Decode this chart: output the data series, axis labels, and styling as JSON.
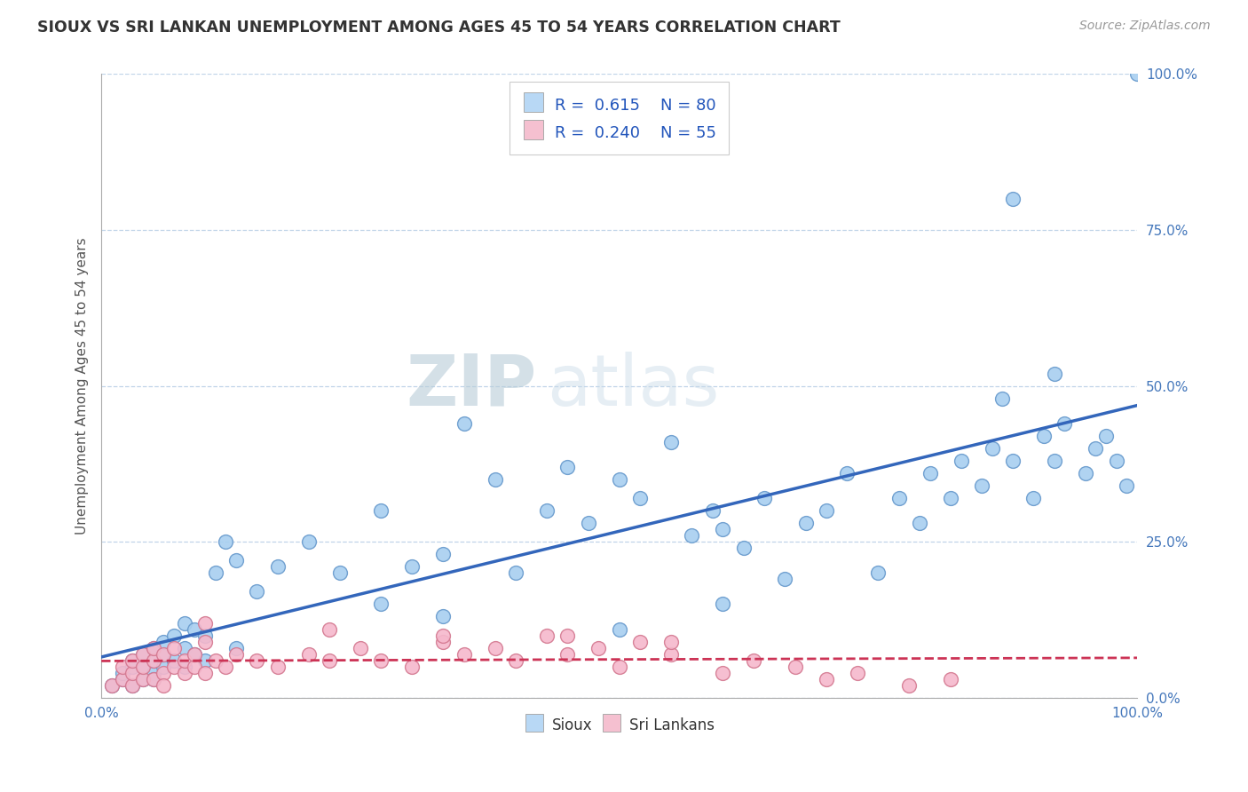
{
  "title": "SIOUX VS SRI LANKAN UNEMPLOYMENT AMONG AGES 45 TO 54 YEARS CORRELATION CHART",
  "source_text": "Source: ZipAtlas.com",
  "ylabel": "Unemployment Among Ages 45 to 54 years",
  "xlim": [
    0,
    1
  ],
  "ylim": [
    0,
    1
  ],
  "ytick_positions": [
    0,
    0.25,
    0.5,
    0.75,
    1.0
  ],
  "ytick_labels": [
    "0.0%",
    "25.0%",
    "50.0%",
    "75.0%",
    "100.0%"
  ],
  "xtick_positions": [
    0,
    1
  ],
  "xtick_labels": [
    "0.0%",
    "100.0%"
  ],
  "sioux_color": "#a8cff0",
  "sioux_edge_color": "#6699cc",
  "sri_color": "#f5b8cc",
  "sri_edge_color": "#d47890",
  "trend_sioux_color": "#3366bb",
  "trend_sri_color": "#cc3355",
  "legend_box_sioux": "#b8d8f5",
  "legend_box_sri": "#f5c0d0",
  "R_sioux": "0.615",
  "N_sioux": 80,
  "R_sri": "0.240",
  "N_sri": 55,
  "background_color": "#ffffff",
  "grid_color": "#c0d4e8",
  "watermark_zip": "ZIP",
  "watermark_atlas": "atlas",
  "sioux_x": [
    0.01,
    0.02,
    0.02,
    0.03,
    0.03,
    0.03,
    0.04,
    0.04,
    0.04,
    0.05,
    0.05,
    0.05,
    0.05,
    0.06,
    0.06,
    0.06,
    0.07,
    0.07,
    0.08,
    0.08,
    0.08,
    0.09,
    0.09,
    0.1,
    0.1,
    0.11,
    0.12,
    0.13,
    0.13,
    0.15,
    0.17,
    0.2,
    0.23,
    0.27,
    0.3,
    0.33,
    0.35,
    0.38,
    0.4,
    0.43,
    0.45,
    0.47,
    0.5,
    0.52,
    0.55,
    0.57,
    0.59,
    0.6,
    0.62,
    0.64,
    0.66,
    0.68,
    0.7,
    0.72,
    0.75,
    0.77,
    0.79,
    0.8,
    0.82,
    0.83,
    0.85,
    0.86,
    0.87,
    0.88,
    0.9,
    0.91,
    0.92,
    0.93,
    0.95,
    0.96,
    0.97,
    0.98,
    0.99,
    1.0,
    0.27,
    0.33,
    0.5,
    0.6,
    0.88,
    0.92
  ],
  "sioux_y": [
    0.02,
    0.03,
    0.04,
    0.02,
    0.05,
    0.06,
    0.03,
    0.07,
    0.05,
    0.04,
    0.06,
    0.08,
    0.03,
    0.05,
    0.07,
    0.09,
    0.06,
    0.1,
    0.05,
    0.08,
    0.12,
    0.07,
    0.11,
    0.06,
    0.1,
    0.2,
    0.25,
    0.22,
    0.08,
    0.17,
    0.21,
    0.25,
    0.2,
    0.3,
    0.21,
    0.23,
    0.44,
    0.35,
    0.2,
    0.3,
    0.37,
    0.28,
    0.35,
    0.32,
    0.41,
    0.26,
    0.3,
    0.27,
    0.24,
    0.32,
    0.19,
    0.28,
    0.3,
    0.36,
    0.2,
    0.32,
    0.28,
    0.36,
    0.32,
    0.38,
    0.34,
    0.4,
    0.48,
    0.38,
    0.32,
    0.42,
    0.38,
    0.44,
    0.36,
    0.4,
    0.42,
    0.38,
    0.34,
    1.0,
    0.15,
    0.13,
    0.11,
    0.15,
    0.8,
    0.52
  ],
  "sri_x": [
    0.01,
    0.02,
    0.02,
    0.03,
    0.03,
    0.03,
    0.04,
    0.04,
    0.04,
    0.05,
    0.05,
    0.05,
    0.06,
    0.06,
    0.06,
    0.07,
    0.07,
    0.08,
    0.08,
    0.09,
    0.09,
    0.1,
    0.1,
    0.11,
    0.12,
    0.13,
    0.15,
    0.17,
    0.2,
    0.22,
    0.25,
    0.27,
    0.3,
    0.33,
    0.35,
    0.38,
    0.4,
    0.43,
    0.45,
    0.48,
    0.5,
    0.52,
    0.55,
    0.6,
    0.63,
    0.67,
    0.7,
    0.73,
    0.78,
    0.82,
    0.1,
    0.22,
    0.33,
    0.45,
    0.55
  ],
  "sri_y": [
    0.02,
    0.03,
    0.05,
    0.02,
    0.04,
    0.06,
    0.03,
    0.05,
    0.07,
    0.03,
    0.06,
    0.08,
    0.04,
    0.07,
    0.02,
    0.05,
    0.08,
    0.04,
    0.06,
    0.05,
    0.07,
    0.04,
    0.09,
    0.06,
    0.05,
    0.07,
    0.06,
    0.05,
    0.07,
    0.06,
    0.08,
    0.06,
    0.05,
    0.09,
    0.07,
    0.08,
    0.06,
    0.1,
    0.07,
    0.08,
    0.05,
    0.09,
    0.07,
    0.04,
    0.06,
    0.05,
    0.03,
    0.04,
    0.02,
    0.03,
    0.12,
    0.11,
    0.1,
    0.1,
    0.09
  ]
}
